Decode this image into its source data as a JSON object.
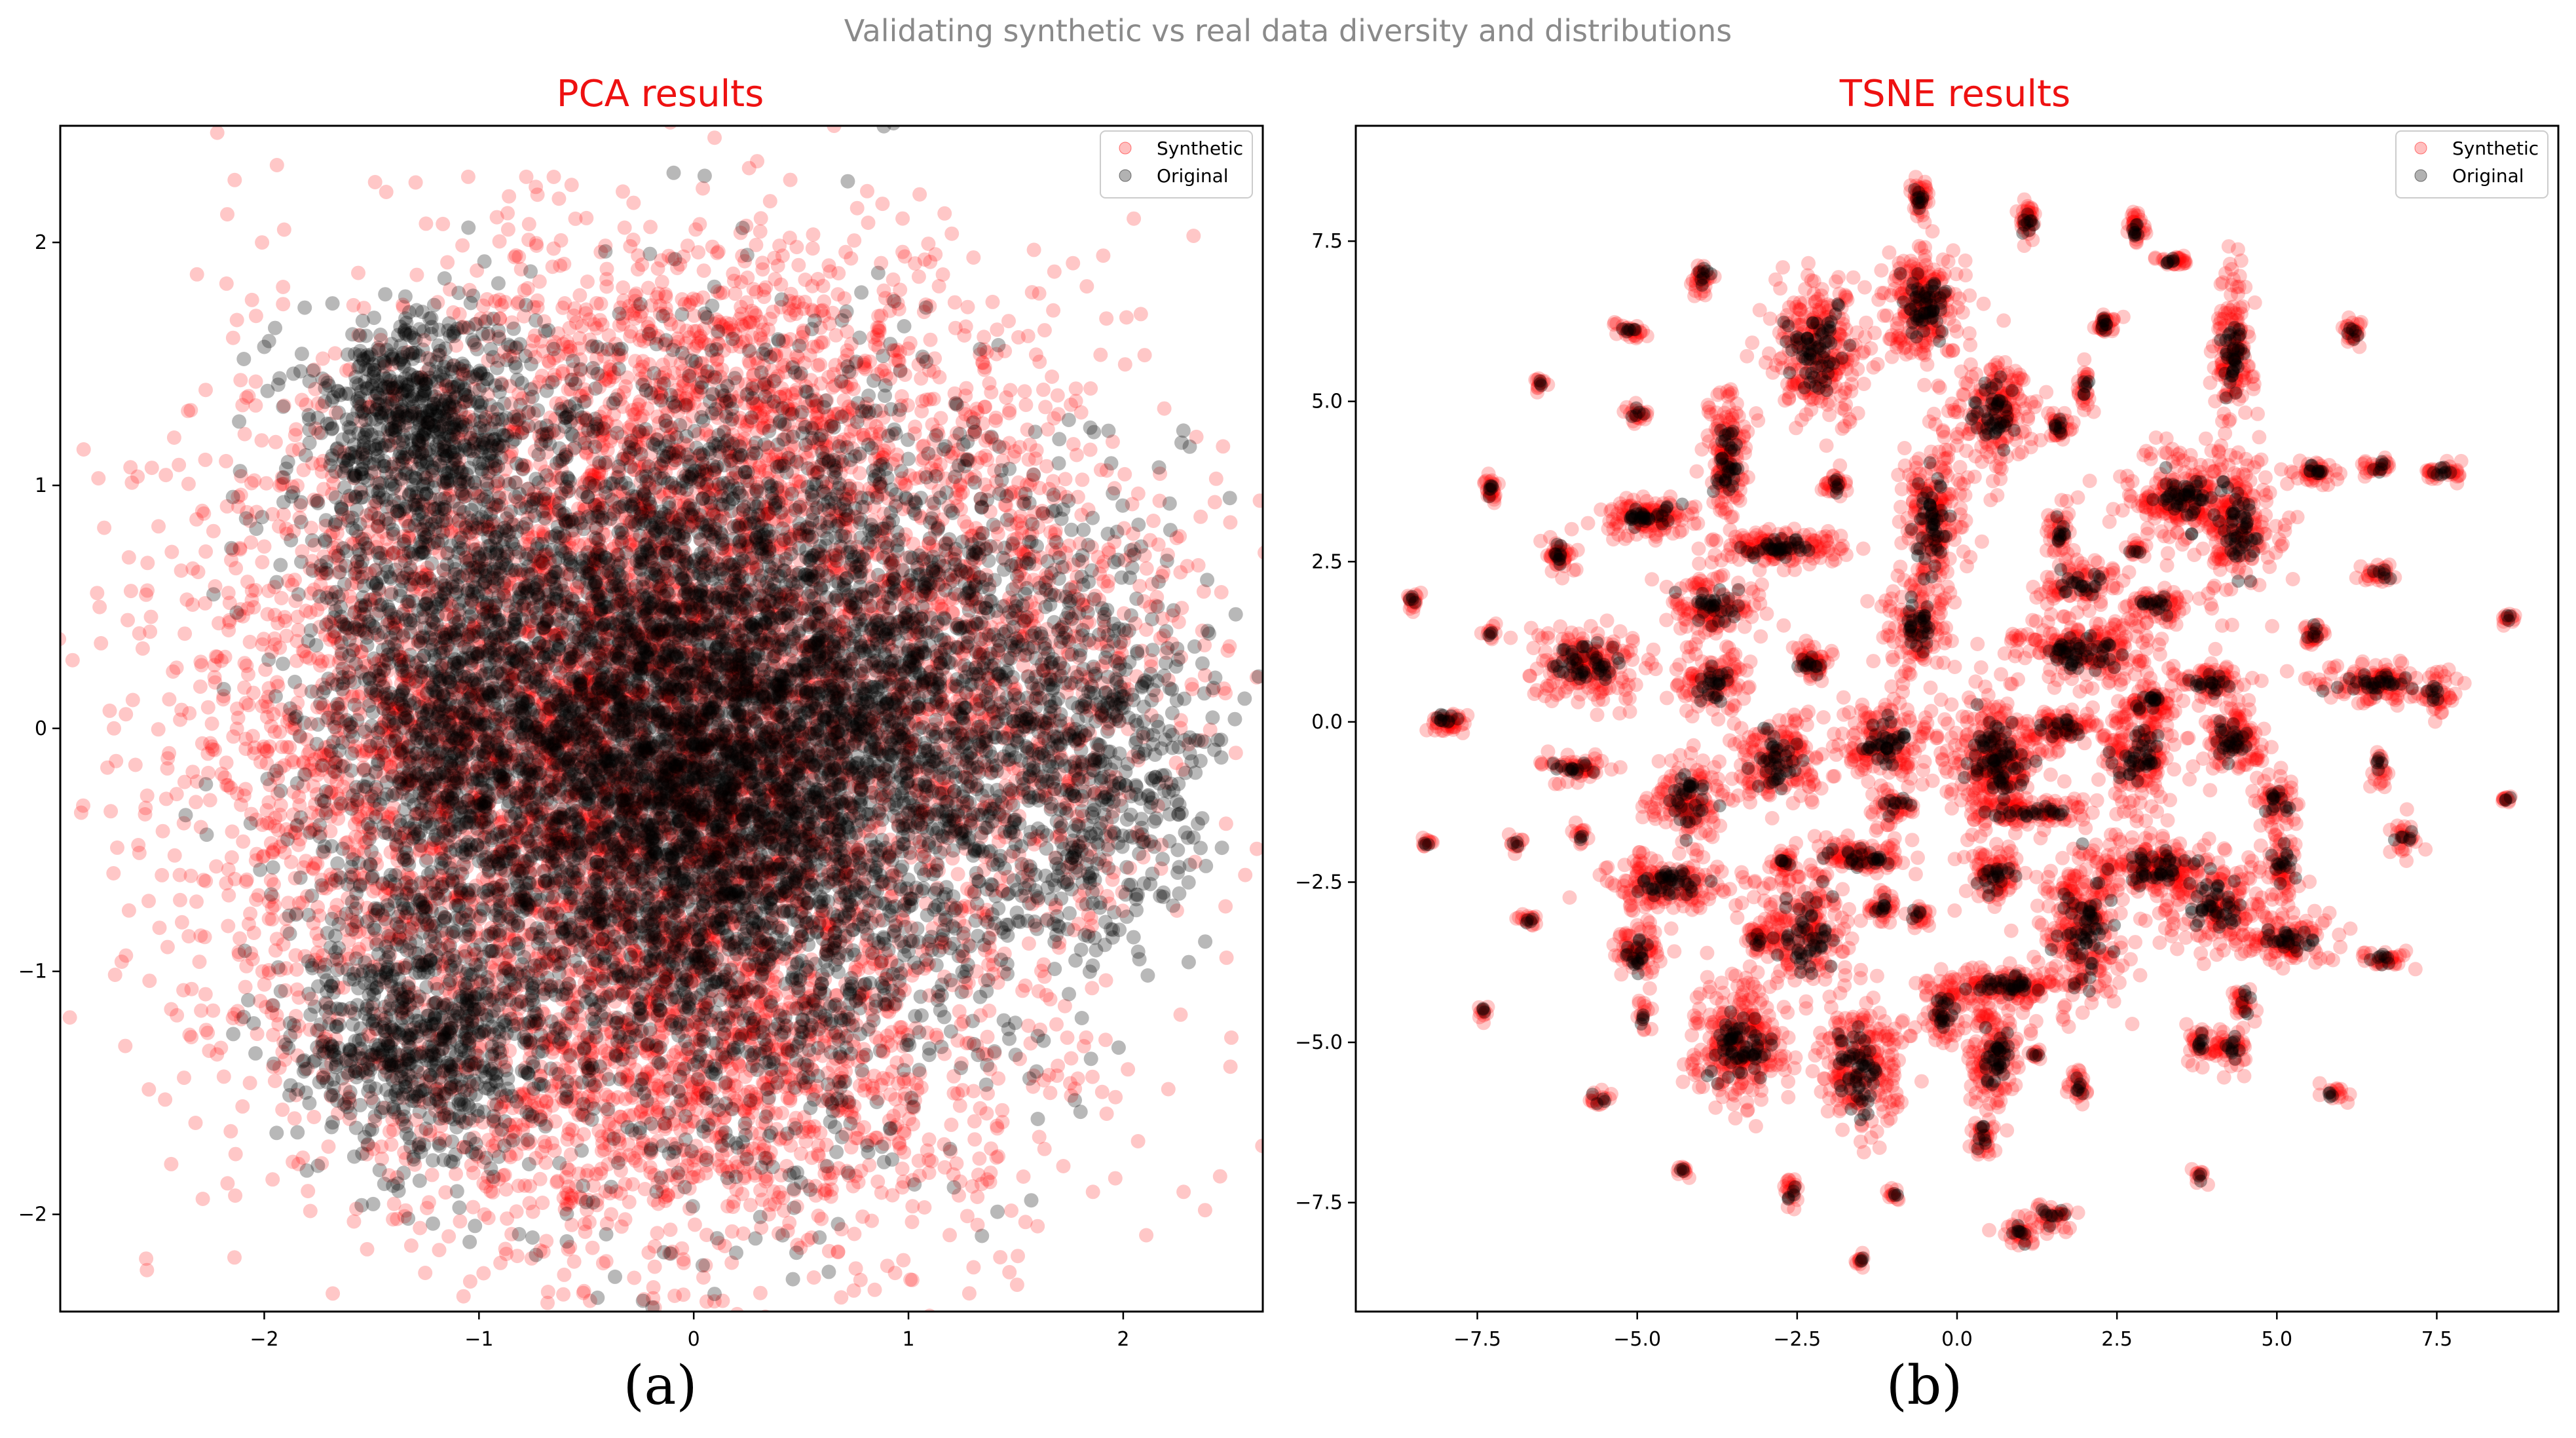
{
  "figure": {
    "suptitle": "Validating synthetic vs real data diversity and distributions",
    "panel_labels": [
      "(a)",
      "(b)"
    ]
  },
  "colors": {
    "synthetic": "#ff0000",
    "original": "#000000",
    "title": "#ee1111",
    "suptitle": "#8a8a8a"
  },
  "chart_data": [
    {
      "type": "scatter",
      "title": "PCA results",
      "xlabel": "",
      "ylabel": "",
      "xlim": [
        -2.95,
        2.65
      ],
      "ylim": [
        -2.4,
        2.48
      ],
      "xticks": [
        -2,
        -1,
        0,
        1,
        2
      ],
      "xtick_labels": [
        "−2",
        "−1",
        "0",
        "1",
        "2"
      ],
      "yticks": [
        -2,
        -1,
        0,
        1,
        2
      ],
      "ytick_labels": [
        "−2",
        "−1",
        "0",
        "1",
        "2"
      ],
      "legend": {
        "location": "top-right",
        "entries": [
          "Synthetic",
          "Original"
        ]
      },
      "grid": false,
      "series": [
        {
          "name": "Synthetic",
          "color": "#ff0000",
          "description": "dense cloud, triangular shape, approx. x from -2.7 to 2.3, y from -2.2 to 2.3",
          "clusters": [
            {
              "cx": -0.15,
              "cy": -0.1,
              "sx": 0.85,
              "sy": 0.85,
              "n": 5200
            },
            {
              "cx": -1.6,
              "cy": 0.0,
              "sx": 0.55,
              "sy": 0.75,
              "n": 900
            },
            {
              "cx": 0.2,
              "cy": 1.35,
              "sx": 0.7,
              "sy": 0.35,
              "n": 900
            },
            {
              "cx": 0.0,
              "cy": -1.5,
              "sx": 0.8,
              "sy": 0.35,
              "n": 900
            },
            {
              "cx": 1.5,
              "cy": 0.3,
              "sx": 0.45,
              "sy": 0.55,
              "n": 700
            }
          ],
          "outliers": [
            [
              -2.7,
              0.0
            ],
            [
              -2.6,
              -0.15
            ],
            [
              -2.55,
              0.55
            ],
            [
              -1.05,
              2.27
            ],
            [
              -0.78,
              2.27
            ],
            [
              -0.5,
              2.1
            ],
            [
              -0.9,
              -2.2
            ],
            [
              2.25,
              -0.75
            ],
            [
              0.35,
              -2.0
            ],
            [
              -2.45,
              -0.9
            ]
          ]
        },
        {
          "name": "Original",
          "color": "#000000",
          "description": "dense core, slightly smaller than synthetic, approx. x from -2.0 to 2.4, y from -1.8 to 1.6",
          "clusters": [
            {
              "cx": 0.0,
              "cy": -0.1,
              "sx": 0.7,
              "sy": 0.72,
              "n": 6000
            },
            {
              "cx": -1.25,
              "cy": 0.3,
              "sx": 0.3,
              "sy": 0.65,
              "n": 900
            },
            {
              "cx": -1.3,
              "cy": -1.3,
              "sx": 0.28,
              "sy": 0.25,
              "n": 600
            },
            {
              "cx": -1.3,
              "cy": 1.3,
              "sx": 0.25,
              "sy": 0.2,
              "n": 500
            },
            {
              "cx": 1.2,
              "cy": 0.1,
              "sx": 0.5,
              "sy": 0.5,
              "n": 800
            },
            {
              "cx": 1.9,
              "cy": -0.2,
              "sx": 0.25,
              "sy": 0.35,
              "n": 400
            }
          ],
          "outliers": [
            [
              -2.0,
              1.57
            ],
            [
              2.35,
              -0.05
            ],
            [
              2.25,
              -0.3
            ],
            [
              -1.75,
              -1.8
            ],
            [
              -0.45,
              1.57
            ],
            [
              -0.4,
              1.56
            ],
            [
              -0.35,
              1.56
            ],
            [
              2.2,
              0.4
            ]
          ]
        }
      ]
    },
    {
      "type": "scatter",
      "title": "TSNE results",
      "xlabel": "",
      "ylabel": "",
      "xlim": [
        -9.4,
        9.4
      ],
      "ylim": [
        -9.2,
        9.3
      ],
      "xticks": [
        -7.5,
        -5.0,
        -2.5,
        0.0,
        2.5,
        5.0,
        7.5
      ],
      "xtick_labels": [
        "−7.5",
        "−5.0",
        "−2.5",
        "0.0",
        "2.5",
        "5.0",
        "7.5"
      ],
      "yticks": [
        -7.5,
        -5.0,
        -2.5,
        0.0,
        2.5,
        5.0,
        7.5
      ],
      "ytick_labels": [
        "−7.5",
        "−5.0",
        "−2.5",
        "0.0",
        "2.5",
        "5.0",
        "7.5"
      ],
      "legend": {
        "location": "top-right",
        "entries": [
          "Synthetic",
          "Original"
        ]
      },
      "grid": false,
      "clusters": [
        {
          "x": -0.6,
          "y": 8.2,
          "sx": 0.08,
          "sy": 0.15,
          "n": 40
        },
        {
          "x": 1.1,
          "y": 7.8,
          "sx": 0.07,
          "sy": 0.18,
          "n": 35
        },
        {
          "x": 2.8,
          "y": 7.7,
          "sx": 0.07,
          "sy": 0.15,
          "n": 30
        },
        {
          "x": 3.4,
          "y": 7.2,
          "sx": 0.15,
          "sy": 0.05,
          "n": 25
        },
        {
          "x": -4.0,
          "y": 6.9,
          "sx": 0.08,
          "sy": 0.15,
          "n": 30
        },
        {
          "x": -0.5,
          "y": 6.5,
          "sx": 0.3,
          "sy": 0.5,
          "n": 220
        },
        {
          "x": -2.2,
          "y": 5.8,
          "sx": 0.4,
          "sy": 0.55,
          "n": 260
        },
        {
          "x": 2.3,
          "y": 6.2,
          "sx": 0.08,
          "sy": 0.1,
          "n": 30
        },
        {
          "x": 4.3,
          "y": 5.8,
          "sx": 0.15,
          "sy": 0.55,
          "n": 140
        },
        {
          "x": 6.2,
          "y": 6.1,
          "sx": 0.08,
          "sy": 0.12,
          "n": 25
        },
        {
          "x": -5.1,
          "y": 6.1,
          "sx": 0.12,
          "sy": 0.06,
          "n": 25
        },
        {
          "x": -6.5,
          "y": 5.3,
          "sx": 0.06,
          "sy": 0.06,
          "n": 12
        },
        {
          "x": -5.0,
          "y": 4.8,
          "sx": 0.08,
          "sy": 0.08,
          "n": 20
        },
        {
          "x": 2.0,
          "y": 5.2,
          "sx": 0.06,
          "sy": 0.2,
          "n": 25
        },
        {
          "x": 0.6,
          "y": 4.8,
          "sx": 0.3,
          "sy": 0.45,
          "n": 180
        },
        {
          "x": -3.6,
          "y": 4.1,
          "sx": 0.15,
          "sy": 0.55,
          "n": 140
        },
        {
          "x": -1.9,
          "y": 3.7,
          "sx": 0.1,
          "sy": 0.1,
          "n": 25
        },
        {
          "x": 1.6,
          "y": 4.6,
          "sx": 0.1,
          "sy": 0.12,
          "n": 30
        },
        {
          "x": -0.4,
          "y": 3.2,
          "sx": 0.25,
          "sy": 0.7,
          "n": 200
        },
        {
          "x": 3.5,
          "y": 3.5,
          "sx": 0.45,
          "sy": 0.35,
          "n": 200
        },
        {
          "x": 4.4,
          "y": 3.0,
          "sx": 0.3,
          "sy": 0.6,
          "n": 190
        },
        {
          "x": 5.6,
          "y": 3.9,
          "sx": 0.2,
          "sy": 0.1,
          "n": 40
        },
        {
          "x": 6.6,
          "y": 4.0,
          "sx": 0.12,
          "sy": 0.08,
          "n": 25
        },
        {
          "x": 7.6,
          "y": 3.9,
          "sx": 0.2,
          "sy": 0.07,
          "n": 30
        },
        {
          "x": -7.3,
          "y": 3.6,
          "sx": 0.06,
          "sy": 0.12,
          "n": 25
        },
        {
          "x": -4.8,
          "y": 3.2,
          "sx": 0.35,
          "sy": 0.15,
          "n": 120
        },
        {
          "x": -6.2,
          "y": 2.6,
          "sx": 0.12,
          "sy": 0.15,
          "n": 40
        },
        {
          "x": -2.8,
          "y": 2.7,
          "sx": 0.45,
          "sy": 0.15,
          "n": 140
        },
        {
          "x": 1.6,
          "y": 3.0,
          "sx": 0.1,
          "sy": 0.25,
          "n": 40
        },
        {
          "x": 2.8,
          "y": 2.7,
          "sx": 0.08,
          "sy": 0.08,
          "n": 15
        },
        {
          "x": -3.8,
          "y": 1.8,
          "sx": 0.35,
          "sy": 0.25,
          "n": 120
        },
        {
          "x": 1.9,
          "y": 2.1,
          "sx": 0.35,
          "sy": 0.2,
          "n": 80
        },
        {
          "x": 3.1,
          "y": 1.8,
          "sx": 0.25,
          "sy": 0.12,
          "n": 60
        },
        {
          "x": 6.6,
          "y": 2.3,
          "sx": 0.15,
          "sy": 0.08,
          "n": 25
        },
        {
          "x": 8.6,
          "y": 1.6,
          "sx": 0.05,
          "sy": 0.06,
          "n": 12
        },
        {
          "x": -8.5,
          "y": 1.9,
          "sx": 0.06,
          "sy": 0.07,
          "n": 15
        },
        {
          "x": -7.3,
          "y": 1.4,
          "sx": 0.05,
          "sy": 0.06,
          "n": 10
        },
        {
          "x": -5.8,
          "y": 0.9,
          "sx": 0.45,
          "sy": 0.3,
          "n": 180
        },
        {
          "x": -0.6,
          "y": 1.5,
          "sx": 0.25,
          "sy": 0.4,
          "n": 120
        },
        {
          "x": 2.0,
          "y": 1.1,
          "sx": 0.55,
          "sy": 0.25,
          "n": 200
        },
        {
          "x": 5.6,
          "y": 1.4,
          "sx": 0.1,
          "sy": 0.1,
          "n": 25
        },
        {
          "x": 6.6,
          "y": 0.6,
          "sx": 0.5,
          "sy": 0.15,
          "n": 120
        },
        {
          "x": 7.5,
          "y": 0.4,
          "sx": 0.1,
          "sy": 0.2,
          "n": 30
        },
        {
          "x": -3.8,
          "y": 0.6,
          "sx": 0.3,
          "sy": 0.25,
          "n": 100
        },
        {
          "x": -2.3,
          "y": 0.9,
          "sx": 0.15,
          "sy": 0.15,
          "n": 50
        },
        {
          "x": 4.0,
          "y": 0.6,
          "sx": 0.3,
          "sy": 0.15,
          "n": 70
        },
        {
          "x": 3.0,
          "y": 0.3,
          "sx": 0.2,
          "sy": 0.15,
          "n": 60
        },
        {
          "x": -8.0,
          "y": 0.0,
          "sx": 0.15,
          "sy": 0.1,
          "n": 40
        },
        {
          "x": -2.8,
          "y": -0.6,
          "sx": 0.35,
          "sy": 0.35,
          "n": 160
        },
        {
          "x": -1.1,
          "y": -0.3,
          "sx": 0.35,
          "sy": 0.3,
          "n": 150
        },
        {
          "x": 0.6,
          "y": -0.6,
          "sx": 0.4,
          "sy": 0.5,
          "n": 300
        },
        {
          "x": 1.6,
          "y": -0.1,
          "sx": 0.3,
          "sy": 0.15,
          "n": 70
        },
        {
          "x": 2.8,
          "y": -0.5,
          "sx": 0.3,
          "sy": 0.4,
          "n": 150
        },
        {
          "x": 4.3,
          "y": -0.3,
          "sx": 0.25,
          "sy": 0.25,
          "n": 110
        },
        {
          "x": -6.0,
          "y": -0.7,
          "sx": 0.25,
          "sy": 0.1,
          "n": 50
        },
        {
          "x": -4.2,
          "y": -1.2,
          "sx": 0.3,
          "sy": 0.35,
          "n": 130
        },
        {
          "x": 6.6,
          "y": -0.7,
          "sx": 0.06,
          "sy": 0.15,
          "n": 20
        },
        {
          "x": 1.2,
          "y": -1.4,
          "sx": 0.5,
          "sy": 0.1,
          "n": 90
        },
        {
          "x": -1.0,
          "y": -1.3,
          "sx": 0.15,
          "sy": 0.15,
          "n": 40
        },
        {
          "x": 5.0,
          "y": -1.2,
          "sx": 0.2,
          "sy": 0.25,
          "n": 50
        },
        {
          "x": 8.6,
          "y": -1.2,
          "sx": 0.05,
          "sy": 0.05,
          "n": 10
        },
        {
          "x": -8.3,
          "y": -1.9,
          "sx": 0.05,
          "sy": 0.05,
          "n": 10
        },
        {
          "x": -6.9,
          "y": -1.9,
          "sx": 0.06,
          "sy": 0.06,
          "n": 10
        },
        {
          "x": -5.9,
          "y": -1.8,
          "sx": 0.06,
          "sy": 0.08,
          "n": 12
        },
        {
          "x": -2.7,
          "y": -2.2,
          "sx": 0.1,
          "sy": 0.12,
          "n": 25
        },
        {
          "x": -1.5,
          "y": -2.1,
          "sx": 0.4,
          "sy": 0.15,
          "n": 100
        },
        {
          "x": 7.0,
          "y": -1.8,
          "sx": 0.1,
          "sy": 0.15,
          "n": 25
        },
        {
          "x": -4.5,
          "y": -2.5,
          "sx": 0.45,
          "sy": 0.2,
          "n": 160
        },
        {
          "x": 0.6,
          "y": -2.4,
          "sx": 0.25,
          "sy": 0.25,
          "n": 80
        },
        {
          "x": 3.2,
          "y": -2.3,
          "sx": 0.55,
          "sy": 0.25,
          "n": 180
        },
        {
          "x": 5.1,
          "y": -2.2,
          "sx": 0.15,
          "sy": 0.35,
          "n": 60
        },
        {
          "x": -6.7,
          "y": -3.1,
          "sx": 0.08,
          "sy": 0.06,
          "n": 15
        },
        {
          "x": -2.4,
          "y": -3.3,
          "sx": 0.4,
          "sy": 0.55,
          "n": 200
        },
        {
          "x": -1.2,
          "y": -2.9,
          "sx": 0.12,
          "sy": 0.15,
          "n": 30
        },
        {
          "x": -0.6,
          "y": -3.0,
          "sx": 0.08,
          "sy": 0.08,
          "n": 20
        },
        {
          "x": 2.0,
          "y": -3.2,
          "sx": 0.35,
          "sy": 0.65,
          "n": 240
        },
        {
          "x": 4.0,
          "y": -2.9,
          "sx": 0.45,
          "sy": 0.35,
          "n": 150
        },
        {
          "x": 5.2,
          "y": -3.4,
          "sx": 0.4,
          "sy": 0.2,
          "n": 100
        },
        {
          "x": -5.0,
          "y": -3.6,
          "sx": 0.2,
          "sy": 0.25,
          "n": 70
        },
        {
          "x": -3.1,
          "y": -3.4,
          "sx": 0.1,
          "sy": 0.1,
          "n": 25
        },
        {
          "x": 6.7,
          "y": -3.7,
          "sx": 0.2,
          "sy": 0.08,
          "n": 30
        },
        {
          "x": 0.8,
          "y": -4.1,
          "sx": 0.5,
          "sy": 0.15,
          "n": 130
        },
        {
          "x": -0.2,
          "y": -4.5,
          "sx": 0.2,
          "sy": 0.25,
          "n": 70
        },
        {
          "x": 4.5,
          "y": -4.4,
          "sx": 0.1,
          "sy": 0.15,
          "n": 25
        },
        {
          "x": -7.4,
          "y": -4.5,
          "sx": 0.05,
          "sy": 0.06,
          "n": 10
        },
        {
          "x": -4.9,
          "y": -4.6,
          "sx": 0.06,
          "sy": 0.15,
          "n": 15
        },
        {
          "x": -3.4,
          "y": -5.0,
          "sx": 0.35,
          "sy": 0.5,
          "n": 260
        },
        {
          "x": -1.5,
          "y": -5.4,
          "sx": 0.35,
          "sy": 0.55,
          "n": 220
        },
        {
          "x": 0.6,
          "y": -5.2,
          "sx": 0.25,
          "sy": 0.45,
          "n": 140
        },
        {
          "x": 3.8,
          "y": -5.0,
          "sx": 0.12,
          "sy": 0.15,
          "n": 30
        },
        {
          "x": 4.3,
          "y": -5.1,
          "sx": 0.15,
          "sy": 0.15,
          "n": 40
        },
        {
          "x": 1.2,
          "y": -5.2,
          "sx": 0.06,
          "sy": 0.06,
          "n": 10
        },
        {
          "x": 1.9,
          "y": -5.7,
          "sx": 0.1,
          "sy": 0.15,
          "n": 25
        },
        {
          "x": 5.9,
          "y": -5.8,
          "sx": 0.1,
          "sy": 0.06,
          "n": 15
        },
        {
          "x": -5.6,
          "y": -5.9,
          "sx": 0.1,
          "sy": 0.06,
          "n": 15
        },
        {
          "x": 0.4,
          "y": -6.5,
          "sx": 0.08,
          "sy": 0.2,
          "n": 30
        },
        {
          "x": -4.3,
          "y": -7.0,
          "sx": 0.05,
          "sy": 0.05,
          "n": 10
        },
        {
          "x": -2.6,
          "y": -7.3,
          "sx": 0.08,
          "sy": 0.15,
          "n": 20
        },
        {
          "x": 3.8,
          "y": -7.1,
          "sx": 0.08,
          "sy": 0.05,
          "n": 10
        },
        {
          "x": -1.0,
          "y": -7.4,
          "sx": 0.05,
          "sy": 0.06,
          "n": 10
        },
        {
          "x": 1.5,
          "y": -7.7,
          "sx": 0.2,
          "sy": 0.15,
          "n": 35
        },
        {
          "x": 1.0,
          "y": -8.0,
          "sx": 0.15,
          "sy": 0.15,
          "n": 30
        },
        {
          "x": -1.5,
          "y": -8.4,
          "sx": 0.05,
          "sy": 0.06,
          "n": 10
        }
      ]
    }
  ]
}
